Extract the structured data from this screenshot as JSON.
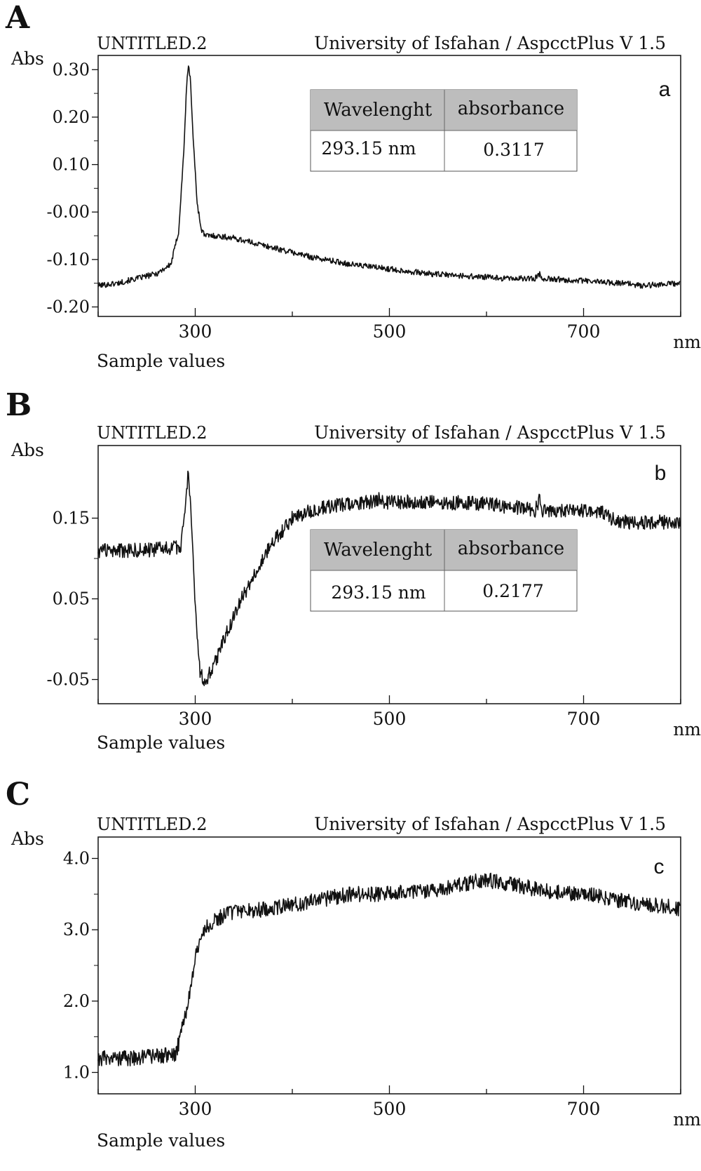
{
  "panels": [
    {
      "panel_letter": "A",
      "sub_label": "a",
      "file_name": "UNTITLED.2",
      "software": "University of Isfahan / AspcctPlus V 1.5",
      "y_unit": "Abs",
      "x_unit": "nm",
      "x_caption": "Sample values",
      "table": {
        "headers": [
          "Wavelenght",
          "absorbance"
        ],
        "row": [
          "293.15 nm",
          "0.3117"
        ]
      }
    },
    {
      "panel_letter": "B",
      "sub_label": "b",
      "file_name": "UNTITLED.2",
      "software": "University of Isfahan / AspcctPlus V 1.5",
      "y_unit": "Abs",
      "x_unit": "nm",
      "x_caption": "Sample values",
      "table": {
        "headers": [
          "Wavelenght",
          "absorbance"
        ],
        "row": [
          "293.15 nm",
          "0.2177"
        ]
      }
    },
    {
      "panel_letter": "C",
      "sub_label": "c",
      "file_name": "UNTITLED.2",
      "software": "University of Isfahan / AspcctPlus V 1.5",
      "y_unit": "Abs",
      "x_unit": "nm",
      "x_caption": "Sample values",
      "table": null
    }
  ],
  "chart_data": [
    {
      "type": "line",
      "xlim": [
        200,
        800
      ],
      "ylim": [
        -0.22,
        0.33
      ],
      "xticks": [
        "300",
        "500",
        "700"
      ],
      "yticks": [
        "0.30",
        "0.20",
        "0.10",
        "-0.00",
        "-0.10",
        "-0.20"
      ],
      "grid": false,
      "x": [
        200,
        220,
        240,
        260,
        275,
        283,
        288,
        291,
        293,
        295,
        298,
        302,
        306,
        310,
        320,
        340,
        380,
        420,
        460,
        500,
        540,
        580,
        620,
        650,
        655,
        657,
        660,
        700,
        740,
        760,
        800
      ],
      "y": [
        -0.155,
        -0.15,
        -0.14,
        -0.13,
        -0.11,
        -0.04,
        0.12,
        0.26,
        0.31,
        0.28,
        0.15,
        0.02,
        -0.035,
        -0.05,
        -0.05,
        -0.055,
        -0.075,
        -0.095,
        -0.11,
        -0.12,
        -0.13,
        -0.135,
        -0.14,
        -0.14,
        -0.13,
        -0.14,
        -0.14,
        -0.145,
        -0.15,
        -0.155,
        -0.15
      ],
      "noise": 0.006
    },
    {
      "type": "line",
      "xlim": [
        200,
        800
      ],
      "ylim": [
        -0.08,
        0.24
      ],
      "xticks": [
        "300",
        "500",
        "700"
      ],
      "yticks": [
        "0.15",
        "0.05",
        "-0.05"
      ],
      "grid": false,
      "x": [
        200,
        250,
        285,
        290,
        293,
        296,
        300,
        305,
        310,
        320,
        340,
        360,
        380,
        400,
        420,
        440,
        460,
        480,
        487,
        489,
        491,
        500,
        540,
        600,
        650,
        655,
        657,
        660,
        700,
        720,
        730,
        740,
        800
      ],
      "y": [
        0.11,
        0.11,
        0.115,
        0.17,
        0.21,
        0.15,
        0.04,
        -0.04,
        -0.055,
        -0.03,
        0.03,
        0.08,
        0.12,
        0.15,
        0.16,
        0.165,
        0.168,
        0.17,
        0.17,
        0.175,
        0.17,
        0.17,
        0.17,
        0.168,
        0.16,
        0.175,
        0.155,
        0.16,
        0.16,
        0.158,
        0.148,
        0.145,
        0.145
      ],
      "noise": 0.009
    },
    {
      "type": "line",
      "xlim": [
        200,
        800
      ],
      "ylim": [
        0.7,
        4.3
      ],
      "xticks": [
        "300",
        "500",
        "700"
      ],
      "yticks": [
        "4.0",
        "3.0",
        "2.0",
        "1.0"
      ],
      "grid": false,
      "x": [
        200,
        240,
        280,
        290,
        300,
        310,
        320,
        340,
        380,
        420,
        460,
        500,
        540,
        580,
        600,
        620,
        660,
        700,
        740,
        800
      ],
      "y": [
        1.2,
        1.2,
        1.25,
        1.8,
        2.6,
        3.0,
        3.15,
        3.25,
        3.3,
        3.4,
        3.5,
        3.5,
        3.55,
        3.65,
        3.7,
        3.65,
        3.55,
        3.5,
        3.4,
        3.3
      ],
      "noise": 0.11
    }
  ]
}
